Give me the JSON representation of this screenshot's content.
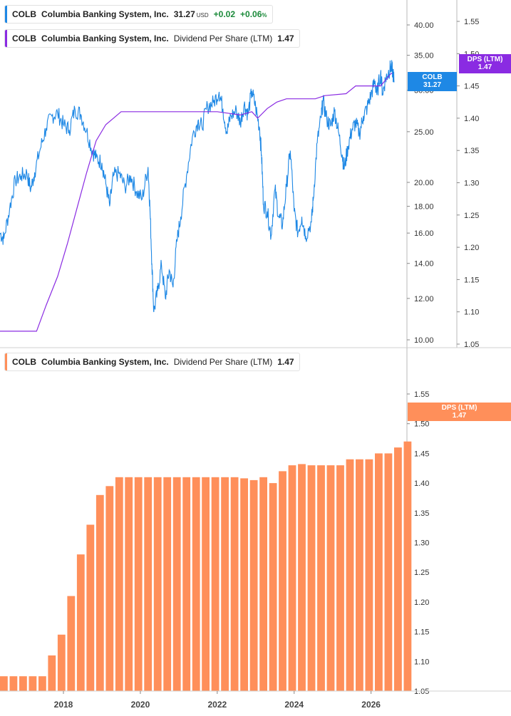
{
  "ticker": "COLB",
  "company": "Columbia Banking System, Inc.",
  "price_legend": {
    "price": "31.27",
    "currency": "USD",
    "change": "+0.02",
    "change_pct": "+0.06",
    "pct_sign": "%"
  },
  "dps_legend": {
    "metric": "Dividend Per Share (LTM)",
    "value": "1.47"
  },
  "price_tag": {
    "label": "COLB",
    "value": "31.27"
  },
  "dps_tag": {
    "label": "DPS (LTM)",
    "value": "1.47"
  },
  "colors": {
    "price": "#1e88e5",
    "dps_line": "#8a2be2",
    "bars": "#ff8f5a",
    "positive": "#1b8a3a"
  },
  "chart_data": [
    {
      "type": "line",
      "title": "COLB Columbia Banking System, Inc.",
      "yscale": "log",
      "ylim": [
        9.8,
        43
      ],
      "y_ticks": [
        "40.00",
        "35.00",
        "30.00",
        "25.00",
        "20.00",
        "18.00",
        "16.00",
        "14.00",
        "12.00",
        "10.00"
      ],
      "x_range": [
        2016.35,
        2026.6
      ],
      "series": [
        {
          "name": "COLB",
          "axis": "left",
          "points": [
            [
              2016.35,
              16.0
            ],
            [
              2016.45,
              15.6
            ],
            [
              2016.6,
              17.8
            ],
            [
              2016.75,
              20.2
            ],
            [
              2016.9,
              20.6
            ],
            [
              2017.05,
              20.8
            ],
            [
              2017.15,
              19.4
            ],
            [
              2017.25,
              20.9
            ],
            [
              2017.4,
              23.2
            ],
            [
              2017.55,
              25.4
            ],
            [
              2017.7,
              26.8
            ],
            [
              2017.85,
              27.1
            ],
            [
              2018.0,
              25.8
            ],
            [
              2018.15,
              25.2
            ],
            [
              2018.3,
              27.6
            ],
            [
              2018.45,
              27.0
            ],
            [
              2018.6,
              25.1
            ],
            [
              2018.75,
              23.0
            ],
            [
              2018.85,
              22.3
            ],
            [
              2019.0,
              21.8
            ],
            [
              2019.1,
              19.9
            ],
            [
              2019.2,
              18.0
            ],
            [
              2019.3,
              20.6
            ],
            [
              2019.45,
              20.8
            ],
            [
              2019.6,
              19.6
            ],
            [
              2019.75,
              20.6
            ],
            [
              2019.9,
              19.2
            ],
            [
              2020.05,
              18.6
            ],
            [
              2020.2,
              21.4
            ],
            [
              2020.25,
              17.8
            ],
            [
              2020.3,
              14.0
            ],
            [
              2020.35,
              11.3
            ],
            [
              2020.45,
              12.4
            ],
            [
              2020.55,
              13.9
            ],
            [
              2020.65,
              12.0
            ],
            [
              2020.75,
              13.6
            ],
            [
              2020.85,
              12.6
            ],
            [
              2020.95,
              15.4
            ],
            [
              2021.05,
              17.2
            ],
            [
              2021.2,
              20.6
            ],
            [
              2021.35,
              24.4
            ],
            [
              2021.5,
              26.2
            ],
            [
              2021.6,
              25.6
            ],
            [
              2021.75,
              28.0
            ],
            [
              2021.9,
              28.4
            ],
            [
              2022.05,
              29.8
            ],
            [
              2022.15,
              27.6
            ],
            [
              2022.25,
              24.9
            ],
            [
              2022.35,
              26.8
            ],
            [
              2022.5,
              27.4
            ],
            [
              2022.6,
              26.0
            ],
            [
              2022.7,
              28.2
            ],
            [
              2022.8,
              27.0
            ],
            [
              2022.9,
              29.9
            ],
            [
              2023.0,
              27.8
            ],
            [
              2023.1,
              25.4
            ],
            [
              2023.15,
              22.6
            ],
            [
              2023.2,
              18.2
            ],
            [
              2023.3,
              17.6
            ],
            [
              2023.4,
              15.8
            ],
            [
              2023.5,
              19.4
            ],
            [
              2023.6,
              17.2
            ],
            [
              2023.7,
              16.6
            ],
            [
              2023.8,
              19.6
            ],
            [
              2023.9,
              23.0
            ],
            [
              2024.0,
              17.6
            ],
            [
              2024.1,
              16.0
            ],
            [
              2024.2,
              17.2
            ],
            [
              2024.3,
              15.8
            ],
            [
              2024.45,
              16.8
            ],
            [
              2024.5,
              18.6
            ],
            [
              2024.6,
              23.8
            ],
            [
              2024.7,
              26.6
            ],
            [
              2024.75,
              28.6
            ],
            [
              2024.85,
              26.4
            ],
            [
              2024.95,
              25.6
            ],
            [
              2025.05,
              27.4
            ],
            [
              2025.15,
              25.0
            ],
            [
              2025.25,
              22.6
            ],
            [
              2025.3,
              21.2
            ],
            [
              2025.4,
              23.4
            ],
            [
              2025.5,
              25.2
            ],
            [
              2025.6,
              26.0
            ],
            [
              2025.7,
              24.8
            ],
            [
              2025.8,
              26.8
            ],
            [
              2025.9,
              27.8
            ],
            [
              2026.0,
              29.4
            ],
            [
              2026.1,
              31.2
            ],
            [
              2026.15,
              29.4
            ],
            [
              2026.25,
              32.4
            ],
            [
              2026.3,
              29.6
            ],
            [
              2026.38,
              31.6
            ],
            [
              2026.45,
              32.4
            ],
            [
              2026.52,
              33.4
            ],
            [
              2026.56,
              32.6
            ],
            [
              2026.6,
              31.27
            ]
          ]
        },
        {
          "name": "DPS (LTM)",
          "axis": "right",
          "points": [
            [
              2016.35,
              1.07
            ],
            [
              2017.3,
              1.07
            ],
            [
              2017.55,
              1.11
            ],
            [
              2017.85,
              1.155
            ],
            [
              2018.1,
              1.205
            ],
            [
              2018.35,
              1.26
            ],
            [
              2018.6,
              1.315
            ],
            [
              2018.85,
              1.365
            ],
            [
              2019.1,
              1.39
            ],
            [
              2019.3,
              1.4
            ],
            [
              2019.5,
              1.41
            ],
            [
              2021.0,
              1.41
            ],
            [
              2022.0,
              1.41
            ],
            [
              2022.25,
              1.408
            ],
            [
              2022.6,
              1.405
            ],
            [
              2022.9,
              1.41
            ],
            [
              2023.05,
              1.4
            ],
            [
              2023.3,
              1.415
            ],
            [
              2023.55,
              1.425
            ],
            [
              2023.8,
              1.43
            ],
            [
              2024.55,
              1.43
            ],
            [
              2024.8,
              1.435
            ],
            [
              2025.35,
              1.438
            ],
            [
              2025.6,
              1.45
            ],
            [
              2026.25,
              1.45
            ],
            [
              2026.5,
              1.468
            ],
            [
              2026.55,
              1.47
            ]
          ]
        }
      ],
      "right_axis": {
        "ylim": [
          1.05,
          1.575
        ],
        "ticks": [
          "1.55",
          "1.50",
          "1.45",
          "1.40",
          "1.35",
          "1.30",
          "1.25",
          "1.20",
          "1.15",
          "1.10",
          "1.05"
        ]
      }
    },
    {
      "type": "bar",
      "title": "COLB Columbia Banking System, Inc. Dividend Per Share (LTM)",
      "ylim": [
        1.05,
        1.565
      ],
      "y_ticks": [
        "1.55",
        "1.50",
        "1.45",
        "1.40",
        "1.35",
        "1.30",
        "1.25",
        "1.20",
        "1.15",
        "1.10",
        "1.05"
      ],
      "x_range": [
        2016.35,
        2026.6
      ],
      "x_ticks": [
        "2018",
        "2020",
        "2022",
        "2024",
        "2026"
      ],
      "first_bar_x": 2016.45,
      "bar_step": 0.25,
      "values": [
        1.075,
        1.075,
        1.075,
        1.075,
        1.075,
        1.11,
        1.145,
        1.21,
        1.28,
        1.33,
        1.38,
        1.395,
        1.41,
        1.41,
        1.41,
        1.41,
        1.41,
        1.41,
        1.41,
        1.41,
        1.41,
        1.41,
        1.41,
        1.41,
        1.41,
        1.408,
        1.405,
        1.41,
        1.4,
        1.42,
        1.43,
        1.432,
        1.43,
        1.43,
        1.43,
        1.43,
        1.44,
        1.44,
        1.44,
        1.45,
        1.45,
        1.46,
        1.47
      ],
      "series": [
        {
          "name": "DPS (LTM)"
        }
      ]
    }
  ]
}
